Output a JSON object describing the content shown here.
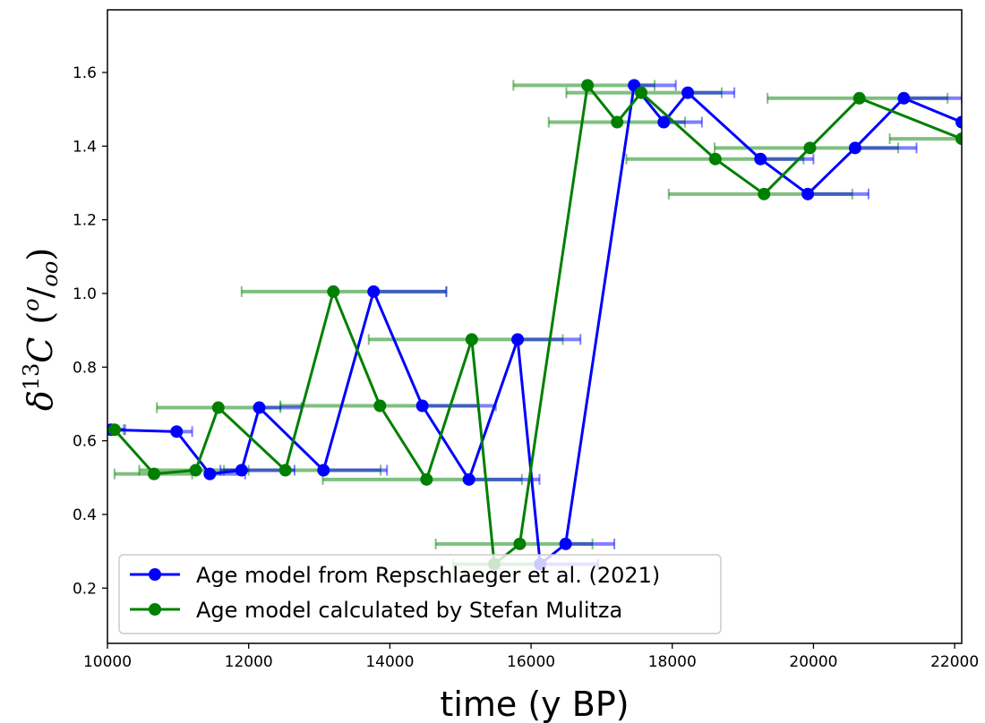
{
  "chart_data": {
    "type": "line",
    "xlabel": "time (y BP)",
    "ylabel": "δ13C (o/oo)",
    "ylabel_parts": {
      "delta": "δ",
      "sup": "13",
      "c": "C",
      "open": "(",
      "o": "o",
      "slash": "/",
      "oo": "oo",
      "close": ")"
    },
    "xlim": [
      10000,
      22100
    ],
    "ylim": [
      0.05,
      1.77
    ],
    "xticks": [
      10000,
      12000,
      14000,
      16000,
      18000,
      20000,
      22000
    ],
    "xtick_labels": [
      "10000",
      "12000",
      "14000",
      "16000",
      "18000",
      "20000",
      "22000"
    ],
    "yticks": [
      0.2,
      0.4,
      0.6,
      0.8,
      1.0,
      1.2,
      1.4,
      1.6
    ],
    "ytick_labels": [
      "0.2",
      "0.4",
      "0.6",
      "0.8",
      "1.0",
      "1.2",
      "1.4",
      "1.6"
    ],
    "grid": false,
    "legend_position": "lower-left",
    "series": [
      {
        "name": "Age model from Repschlaeger et al. (2021)",
        "color": "#0000ff",
        "points": [
          {
            "x": 10050,
            "y": 0.63,
            "xerr": [
              10050,
              10250
            ]
          },
          {
            "x": 10980,
            "y": 0.625,
            "xerr": [
              10980,
              11200
            ]
          },
          {
            "x": 11450,
            "y": 0.51,
            "xerr": [
              11450,
              11950
            ]
          },
          {
            "x": 11900,
            "y": 0.52,
            "xerr": [
              11600,
              12650
            ]
          },
          {
            "x": 12150,
            "y": 0.69,
            "xerr": [
              12150,
              12750
            ]
          },
          {
            "x": 13060,
            "y": 0.52,
            "xerr": [
              13060,
              13960
            ]
          },
          {
            "x": 13770,
            "y": 1.005,
            "xerr": [
              13770,
              14800
            ]
          },
          {
            "x": 14460,
            "y": 0.695,
            "xerr": [
              14460,
              15500
            ]
          },
          {
            "x": 15120,
            "y": 0.495,
            "xerr": [
              15120,
              16120
            ]
          },
          {
            "x": 15810,
            "y": 0.875,
            "xerr": [
              15810,
              16700
            ]
          },
          {
            "x": 16130,
            "y": 0.265,
            "xerr": [
              16130,
              16950
            ]
          },
          {
            "x": 16490,
            "y": 0.32,
            "xerr": [
              16490,
              17180
            ]
          },
          {
            "x": 17460,
            "y": 1.565,
            "xerr": [
              17460,
              18050
            ]
          },
          {
            "x": 17880,
            "y": 1.465,
            "xerr": [
              17880,
              18420
            ]
          },
          {
            "x": 18220,
            "y": 1.545,
            "xerr": [
              18220,
              18880
            ]
          },
          {
            "x": 19250,
            "y": 1.365,
            "xerr": [
              19250,
              20000
            ]
          },
          {
            "x": 19920,
            "y": 1.27,
            "xerr": [
              19920,
              20780
            ]
          },
          {
            "x": 20590,
            "y": 1.395,
            "xerr": [
              20590,
              21460
            ]
          },
          {
            "x": 21280,
            "y": 1.53,
            "xerr": [
              21280,
              22100
            ]
          },
          {
            "x": 22100,
            "y": 1.465,
            "xerr": [
              22100,
              22100
            ]
          }
        ]
      },
      {
        "name": "Age model calculated by Stefan Mulitza",
        "color": "#008000",
        "points": [
          {
            "x": 10100,
            "y": 0.63,
            "xerr": [
              9900,
              10230
            ]
          },
          {
            "x": 10660,
            "y": 0.51,
            "xerr": [
              10100,
              11200
            ]
          },
          {
            "x": 11250,
            "y": 0.52,
            "xerr": [
              10450,
              12000
            ]
          },
          {
            "x": 11570,
            "y": 0.69,
            "xerr": [
              10700,
              12450
            ]
          },
          {
            "x": 12520,
            "y": 0.52,
            "xerr": [
              11650,
              13870
            ]
          },
          {
            "x": 13200,
            "y": 1.005,
            "xerr": [
              11900,
              14800
            ]
          },
          {
            "x": 13860,
            "y": 0.695,
            "xerr": [
              12450,
              15250
            ]
          },
          {
            "x": 14520,
            "y": 0.495,
            "xerr": [
              13050,
              15870
            ]
          },
          {
            "x": 15160,
            "y": 0.875,
            "xerr": [
              13700,
              16450
            ]
          },
          {
            "x": 15480,
            "y": 0.265,
            "xerr": [
              14900,
              16200
            ]
          },
          {
            "x": 15840,
            "y": 0.32,
            "xerr": [
              14650,
              16870
            ]
          },
          {
            "x": 16800,
            "y": 1.565,
            "xerr": [
              15750,
              17750
            ]
          },
          {
            "x": 17220,
            "y": 1.465,
            "xerr": [
              16250,
              18180
            ]
          },
          {
            "x": 17560,
            "y": 1.545,
            "xerr": [
              16500,
              18700
            ]
          },
          {
            "x": 18610,
            "y": 1.365,
            "xerr": [
              17350,
              19860
            ]
          },
          {
            "x": 19300,
            "y": 1.27,
            "xerr": [
              17950,
              20550
            ]
          },
          {
            "x": 19950,
            "y": 1.395,
            "xerr": [
              18600,
              21200
            ]
          },
          {
            "x": 20650,
            "y": 1.53,
            "xerr": [
              19350,
              21900
            ]
          },
          {
            "x": 22100,
            "y": 1.42,
            "xerr": [
              21080,
              22100
            ]
          }
        ]
      }
    ]
  }
}
